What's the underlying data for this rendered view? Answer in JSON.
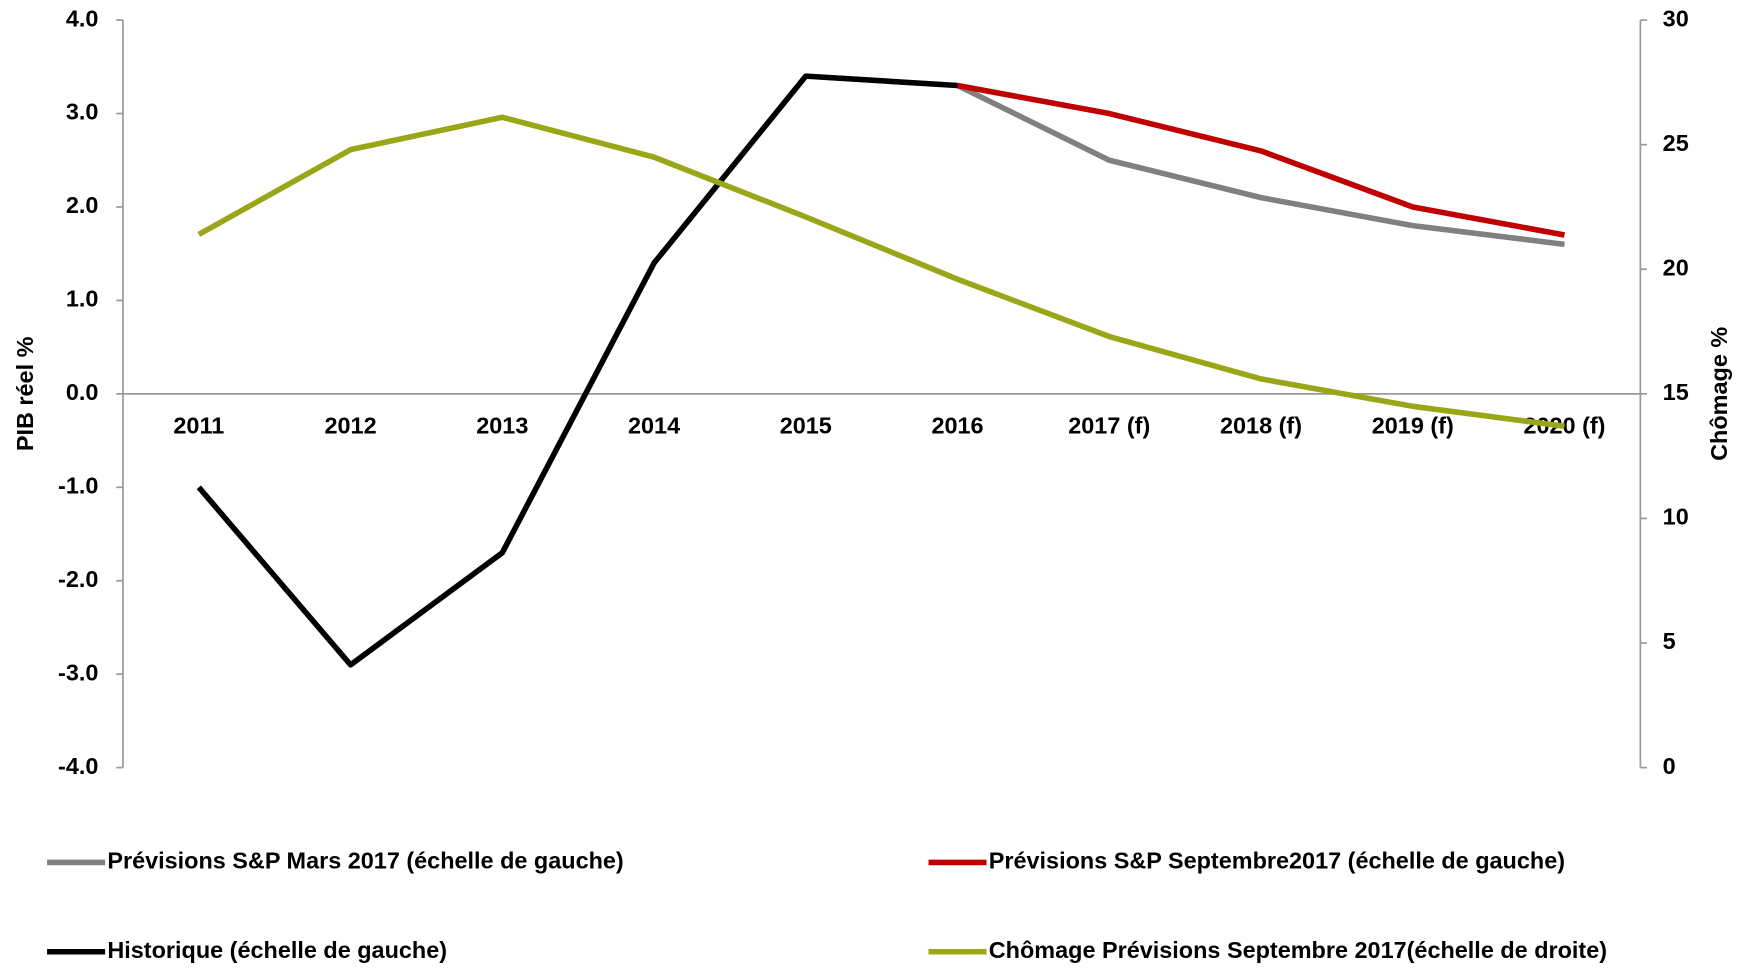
{
  "chart_data": {
    "type": "line",
    "ylabel": "PIB réel %",
    "y2label": "Chômage %",
    "categories": [
      "2011",
      "2012",
      "2013",
      "2014",
      "2015",
      "2016",
      "2017 (f)",
      "2018 (f)",
      "2019 (f)",
      "2020 (f)"
    ],
    "ylim": [
      -4,
      4
    ],
    "yticks": [
      {
        "value": -4,
        "label": "-4.0"
      },
      {
        "value": -3,
        "label": "-3.0"
      },
      {
        "value": -2,
        "label": "-2.0"
      },
      {
        "value": -1,
        "label": "-1.0"
      },
      {
        "value": 0,
        "label": "0.0"
      },
      {
        "value": 1,
        "label": "1.0"
      },
      {
        "value": 2,
        "label": "2.0"
      },
      {
        "value": 3,
        "label": "3.0"
      },
      {
        "value": 4,
        "label": "4.0"
      }
    ],
    "y2lim": [
      0,
      30
    ],
    "y2ticks": [
      0,
      5,
      10,
      15,
      20,
      25,
      30
    ],
    "legend": "bottom",
    "series": [
      {
        "name": "Prévisions S&P Mars 2017 (échelle de gauche)",
        "color": "#808080",
        "values": [
          null,
          null,
          null,
          null,
          null,
          3.3,
          2.5,
          2.1,
          1.8,
          1.6
        ]
      },
      {
        "name": "Prévisions S&P Septembre2017 (échelle de gauche)",
        "color": "#c00000",
        "values": [
          null,
          null,
          null,
          null,
          null,
          3.3,
          3.0,
          2.6,
          2.0,
          1.7
        ]
      },
      {
        "name": "Historique (échelle de gauche)",
        "color": "#000000",
        "values": [
          -1.0,
          -2.9,
          -1.7,
          1.4,
          3.4,
          3.3,
          null,
          null,
          null,
          null
        ]
      },
      {
        "name": "Chômage Prévisions Septembre 2017(échelle de droite)",
        "color": "#99a617",
        "axis": "y2",
        "values": [
          21.4,
          24.8,
          26.1,
          24.5,
          22.1,
          19.6,
          17.3,
          15.6,
          14.5,
          13.7
        ]
      }
    ]
  }
}
